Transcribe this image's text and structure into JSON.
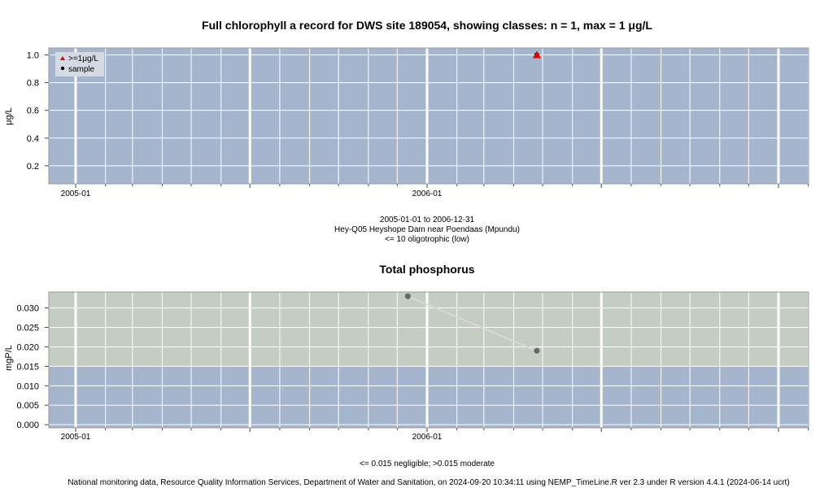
{
  "colors": {
    "band_low": "#a4b5cd",
    "band_moderate": "#c3cdc2",
    "grid": "#ffffff",
    "marker_chl": "#e00000",
    "marker_tp": "#666666",
    "line_tp": "#d8d8d8"
  },
  "chart_data": [
    {
      "type": "scatter",
      "title": "Full chlorophyll a record for DWS site 189054, showing classes: n = 1, max = 1 μg/L",
      "ylabel": "μg/L",
      "xlabel": "",
      "x_range": [
        "2005-01-01",
        "2006-12-31"
      ],
      "x_ticks": [
        "2005-01",
        "2006-01"
      ],
      "ylim": [
        0.07,
        1.05
      ],
      "y_ticks": [
        "0.2",
        "0.4",
        "0.6",
        "0.8",
        "1.0"
      ],
      "grid": true,
      "legend_position": "top-left",
      "legend": [
        {
          "label": ">=1μg/L",
          "marker": "triangle",
          "color": "#e00000"
        },
        {
          "label": "sample",
          "marker": "dot",
          "color": "#000000"
        }
      ],
      "series": [
        {
          "name": "sample",
          "points": [
            {
              "x": "2006-04-25",
              "y": 1.0
            }
          ]
        }
      ],
      "bands": [
        {
          "from": 0.07,
          "to": 1.05,
          "color": "#a4b5cd",
          "label": "<= 10 oligotrophic (low)"
        }
      ],
      "caption_lines": [
        "2005-01-01 to 2006-12-31",
        "Hey-Q05 Heyshope Dam near Poendaas (Mpundu)",
        "<= 10 oligotrophic (low)"
      ]
    },
    {
      "type": "line",
      "title": "Total phosphorus",
      "ylabel": "mgP/L",
      "xlabel": "",
      "x_range": [
        "2005-01-01",
        "2006-12-31"
      ],
      "x_ticks": [
        "2005-01",
        "2006-01"
      ],
      "ylim": [
        -0.0008,
        0.0341
      ],
      "y_ticks": [
        "0.000",
        "0.005",
        "0.010",
        "0.015",
        "0.020",
        "0.025",
        "0.030"
      ],
      "grid": true,
      "series": [
        {
          "name": "",
          "points": [
            {
              "x": "2005-12-12",
              "y": 0.033
            },
            {
              "x": "2006-04-25",
              "y": 0.019
            }
          ]
        }
      ],
      "bands": [
        {
          "from": -0.0008,
          "to": 0.015,
          "color": "#a4b5cd",
          "label": "<= 0.015 negligible"
        },
        {
          "from": 0.015,
          "to": 0.0341,
          "color": "#c3cdc2",
          "label": ">0.015 moderate"
        }
      ],
      "caption_lines": [
        "<= 0.015 negligible; >0.015 moderate"
      ]
    }
  ],
  "footer": "National monitoring data, Resource Quality Information Services, Department of Water and Sanitation, on 2024-09-20 10:34:11 using NEMP_TimeLine.R ver 2.3 under R version 4.4.1 (2024-06-14 ucrt)"
}
